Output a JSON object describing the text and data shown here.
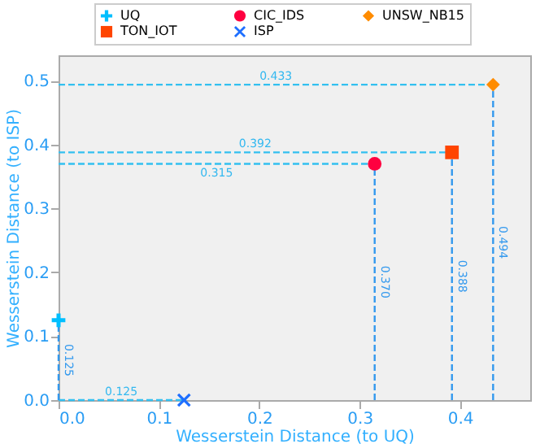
{
  "chart_data": {
    "type": "scatter",
    "xlabel": "Wesserstein Distance (to UQ)",
    "ylabel": "Wesserstein Distance (to ISP)",
    "xlim": [
      0,
      0.47
    ],
    "ylim": [
      0,
      0.54
    ],
    "xticks": [
      {
        "value": 0,
        "label": "0.0"
      },
      0.1,
      0.2,
      0.3,
      0.4
    ],
    "yticks": [
      {
        "value": 0,
        "label": "0.0"
      },
      0.1,
      0.2,
      0.3,
      0.4,
      0.5
    ],
    "grid": false,
    "legend": "top",
    "series": [
      {
        "name": "UQ",
        "color": "#00bfff",
        "marker": "plus",
        "x": [
          0.0
        ],
        "values": [
          0.125
        ],
        "errors": [
          [
            0,
            0.125
          ]
        ],
        "xerrors": [
          null
        ]
      },
      {
        "name": "ISP",
        "color": "#1e6fff",
        "marker": "cross",
        "x": [
          0.125
        ],
        "values": [
          0.0
        ],
        "errors": [
          null
        ],
        "xerrors": [
          [
            0,
            0.125
          ]
        ]
      },
      {
        "name": "TON_IOT",
        "color": "#ff4500",
        "marker": "square",
        "x": [
          0.392
        ],
        "values": [
          0.388
        ],
        "errors": [
          [
            0,
            0.388
          ]
        ],
        "xerrors": [
          [
            0,
            0.392
          ]
        ]
      },
      {
        "name": "UNSW_NB15",
        "color": "#ff8c00",
        "marker": "diamond",
        "x": [
          0.433
        ],
        "values": [
          0.494
        ],
        "errors": [
          [
            0,
            0.494
          ]
        ],
        "xerrors": [
          [
            0,
            0.433
          ]
        ]
      },
      {
        "name": "CIC_IDS",
        "color": "#ff0040",
        "marker": "circle",
        "x": [
          0.315
        ],
        "values": [
          0.37
        ],
        "errors": [
          [
            0,
            0.37
          ]
        ],
        "xerrors": [
          [
            0,
            0.315
          ]
        ]
      }
    ],
    "annotations": [
      {
        "text": "0.125",
        "x": 0.0625,
        "y": 0.0
      },
      {
        "text": "0.392",
        "x": 0.196,
        "y": 0.388
      },
      {
        "text": "0.433",
        "x": 0.2165,
        "y": 0.494
      },
      {
        "text": "0.315",
        "x": 0.1575,
        "y": 0.37
      },
      {
        "text": "0.125",
        "x": 0.0,
        "y": 0.0625
      },
      {
        "text": "0.370",
        "x": 0.315,
        "y": 0.185
      },
      {
        "text": "0.388",
        "x": 0.392,
        "y": 0.194
      },
      {
        "text": "0.494",
        "x": 0.433,
        "y": 0.247
      }
    ]
  }
}
